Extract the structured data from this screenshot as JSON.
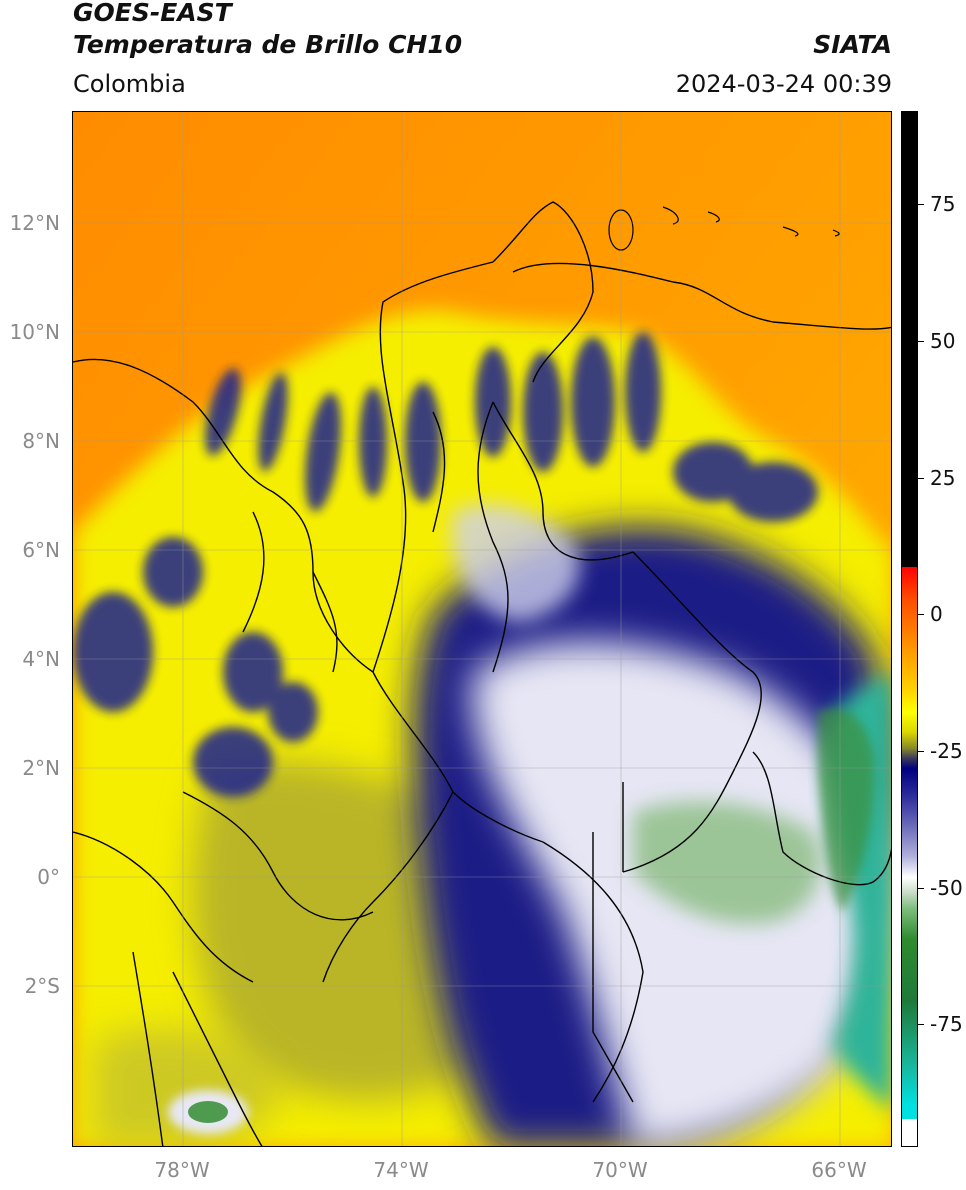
{
  "header": {
    "satellite": "GOES-EAST",
    "product": "Temperatura de Brillo CH10",
    "source": "SIATA",
    "region": "Colombia",
    "datetime": "2024-03-24 00:39"
  },
  "axes": {
    "lat_labels": [
      "12°N",
      "10°N",
      "8°N",
      "6°N",
      "4°N",
      "2°N",
      "0°",
      "2°S"
    ],
    "lon_labels": [
      "78°W",
      "74°W",
      "70°W",
      "66°W"
    ]
  },
  "colorbar": {
    "ticks": [
      "75",
      "50",
      "25",
      "0",
      "-25",
      "-50",
      "-75"
    ],
    "colors": [
      "#000000",
      "#ff0000",
      "#ff9900",
      "#ffff00",
      "#000080",
      "#ffffff",
      "#2e8b2e",
      "#00e0e0"
    ]
  },
  "map": {
    "ocean_color": "#ff9a00",
    "land_warm_color": "#f3f000",
    "land_olive_color": "#b7b52a",
    "cloud_deep_color": "#1c1f8a",
    "cloud_cold_color": "#e9e9f6",
    "coldest_color": "#2bb59a"
  }
}
